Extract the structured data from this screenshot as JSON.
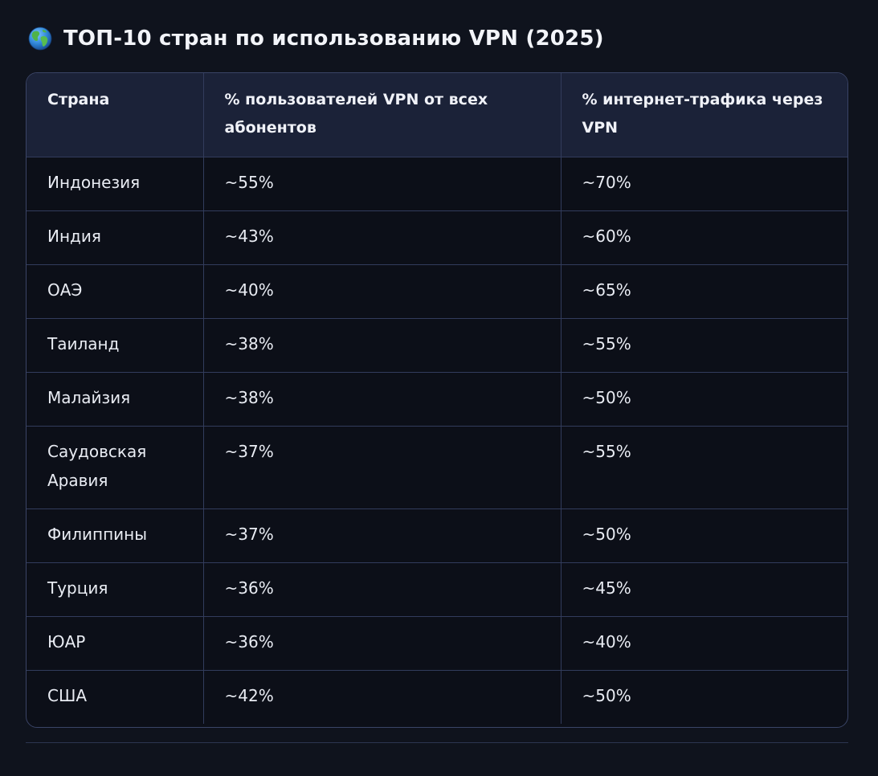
{
  "heading": {
    "icon": "globe-icon",
    "title": "ТОП-10 стран по использованию VPN (2025)"
  },
  "table": {
    "columns": [
      "Страна",
      "% пользователей VPN от всех абонентов",
      "% интернет-трафика через VPN"
    ],
    "rows": [
      {
        "country": "Индонезия",
        "users": "~55%",
        "traffic": "~70%"
      },
      {
        "country": "Индия",
        "users": "~43%",
        "traffic": "~60%"
      },
      {
        "country": "ОАЭ",
        "users": "~40%",
        "traffic": "~65%"
      },
      {
        "country": "Таиланд",
        "users": "~38%",
        "traffic": "~55%"
      },
      {
        "country": "Малайзия",
        "users": "~38%",
        "traffic": "~50%"
      },
      {
        "country": "Саудовская Аравия",
        "users": "~37%",
        "traffic": "~55%"
      },
      {
        "country": "Филиппины",
        "users": "~37%",
        "traffic": "~50%"
      },
      {
        "country": "Турция",
        "users": "~36%",
        "traffic": "~45%"
      },
      {
        "country": "ЮАР",
        "users": "~36%",
        "traffic": "~40%"
      },
      {
        "country": "США",
        "users": "~42%",
        "traffic": "~50%"
      }
    ]
  },
  "colors": {
    "background": "#0f131d",
    "table_background": "#0c0f18",
    "header_background": "#1b2238",
    "border": "#323c5c",
    "text": "#eef1f7"
  }
}
